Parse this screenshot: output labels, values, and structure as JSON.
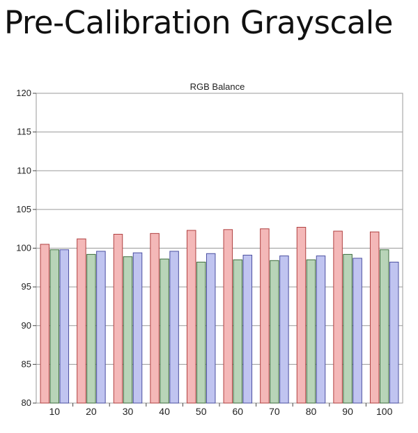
{
  "page": {
    "title": "Pre-Calibration Grayscale"
  },
  "chart_data": {
    "type": "bar",
    "title": "RGB Balance",
    "xlabel": "",
    "ylabel": "",
    "categories": [
      "10",
      "20",
      "30",
      "40",
      "50",
      "60",
      "70",
      "80",
      "90",
      "100"
    ],
    "series": [
      {
        "color": "#f4b8b8",
        "stroke": "#b04040",
        "values": [
          100.5,
          101.2,
          101.8,
          101.9,
          102.3,
          102.4,
          102.5,
          102.7,
          102.2,
          102.1
        ]
      },
      {
        "color": "#b8d4b8",
        "stroke": "#3d6b3d",
        "values": [
          99.8,
          99.2,
          98.9,
          98.6,
          98.2,
          98.5,
          98.4,
          98.5,
          99.2,
          99.8
        ]
      },
      {
        "color": "#c0c4f0",
        "stroke": "#4a4fa0",
        "values": [
          99.8,
          99.6,
          99.4,
          99.6,
          99.3,
          99.1,
          99.0,
          99.0,
          98.7,
          98.2
        ]
      }
    ],
    "ylim": [
      80,
      120
    ],
    "yticks": [
      80,
      85,
      90,
      95,
      100,
      105,
      110,
      115,
      120
    ],
    "grid": true,
    "legend": "none"
  }
}
